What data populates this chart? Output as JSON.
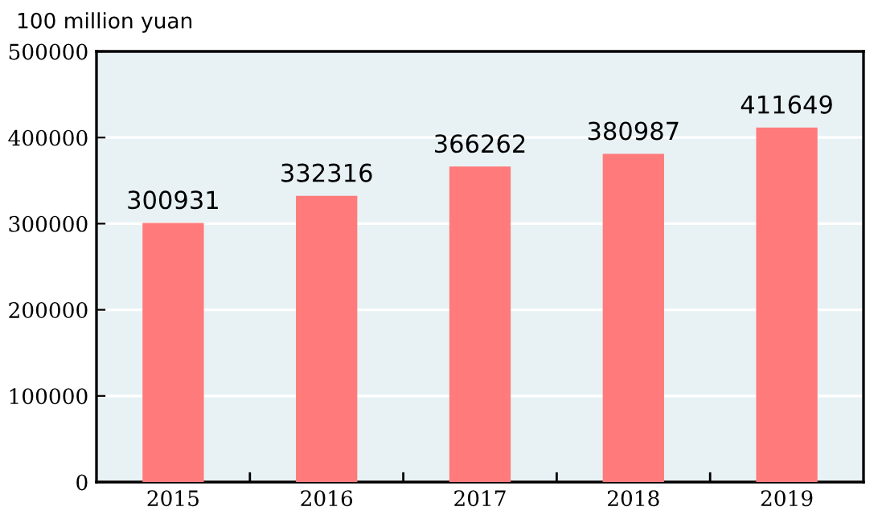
{
  "chart_data": {
    "type": "bar",
    "ylabel": "100 million yuan",
    "categories": [
      "2015",
      "2016",
      "2017",
      "2018",
      "2019"
    ],
    "values": [
      300931,
      332316,
      366262,
      380987,
      411649
    ],
    "color": "#ff7b7b",
    "ylim": [
      0,
      500000
    ],
    "yticks": [
      0,
      100000,
      200000,
      300000,
      400000,
      500000
    ],
    "grid": "y",
    "data_labels": true
  }
}
